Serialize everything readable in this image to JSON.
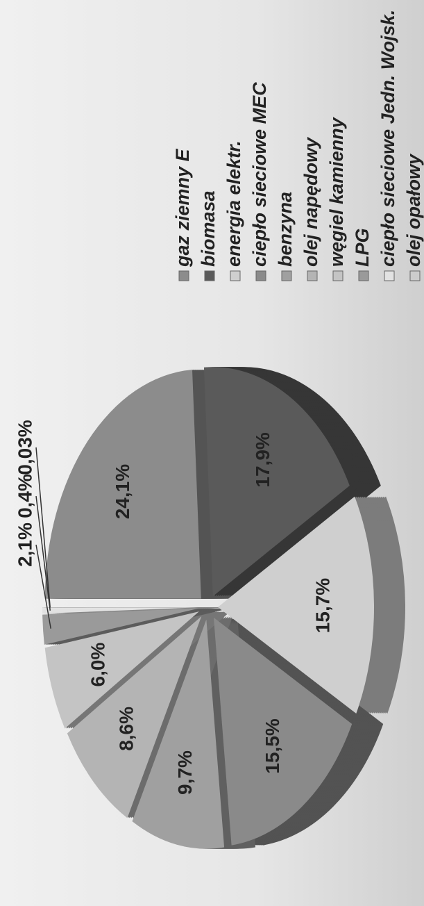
{
  "chart_data": {
    "type": "pie",
    "categories": [
      "gaz ziemny E",
      "biomasa",
      "energia elektr.",
      "ciepło sieciowe MEC",
      "benzyna",
      "olej napędowy",
      "węgiel kamienny",
      "LPG",
      "ciepło sieciowe Jedn. Wojsk.",
      "olej opałowy"
    ],
    "values": [
      24.1,
      17.9,
      15.7,
      15.5,
      9.7,
      8.6,
      6.0,
      2.1,
      0.4,
      0.03
    ],
    "value_labels": [
      "24,1%",
      "17,9%",
      "15,7%",
      "15,5%",
      "9,7%",
      "8,6%",
      "6,0%",
      "2,1%",
      "0,4%",
      "0,03%"
    ],
    "colors": [
      "#8c8c8c",
      "#5a5a5a",
      "#cfcfcf",
      "#8a8a8a",
      "#a0a0a0",
      "#b4b4b4",
      "#c4c4c4",
      "#9a9a9a",
      "#e2e2e2",
      "#cccccc"
    ]
  }
}
